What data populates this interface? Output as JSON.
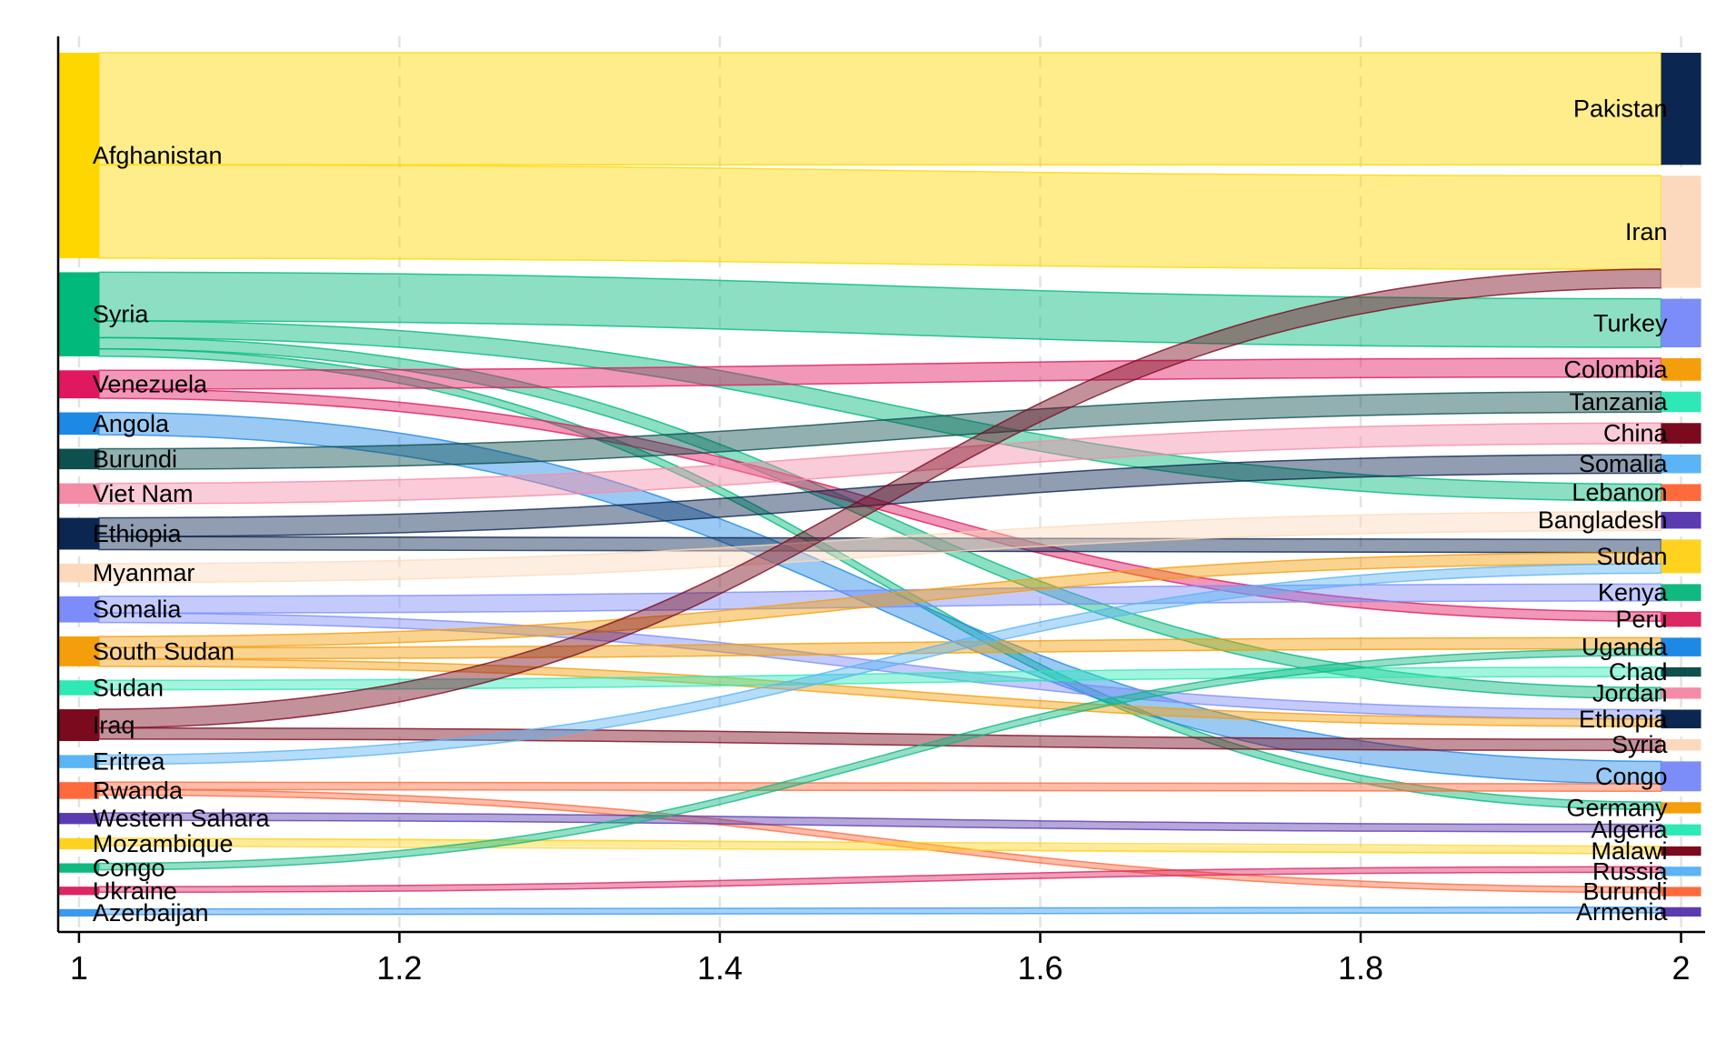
{
  "chart_data": {
    "type": "sankey",
    "title": "",
    "xlabel": "",
    "ylabel": "",
    "xlim": [
      0.987,
      2.015
    ],
    "xticks": [
      "1",
      "1.2",
      "1.4",
      "1.6",
      "1.8",
      "2"
    ],
    "grid": "vertical dashed",
    "legend": "none",
    "sources": [
      {
        "name": "Afghanistan",
        "value": 11.0,
        "color": "#FFD700"
      },
      {
        "name": "Syria",
        "value": 4.5,
        "color": "#00B97A"
      },
      {
        "name": "Venezuela",
        "value": 1.5,
        "color": "#E0185F"
      },
      {
        "name": "Angola",
        "value": 1.2,
        "color": "#1E88E5"
      },
      {
        "name": "Burundi",
        "value": 1.1,
        "color": "#0E4F4F"
      },
      {
        "name": "Viet Nam",
        "value": 1.1,
        "color": "#F48CA8"
      },
      {
        "name": "Ethiopia",
        "value": 1.7,
        "color": "#0B2650"
      },
      {
        "name": "Myanmar",
        "value": 1.0,
        "color": "#FCD9BD"
      },
      {
        "name": "Somalia",
        "value": 1.4,
        "color": "#7C8CF8"
      },
      {
        "name": "South Sudan",
        "value": 1.6,
        "color": "#F59E0B"
      },
      {
        "name": "Sudan",
        "value": 0.8,
        "color": "#2EE8B6"
      },
      {
        "name": "Iraq",
        "value": 1.7,
        "color": "#7B0A1E"
      },
      {
        "name": "Eritrea",
        "value": 0.7,
        "color": "#5AB4F5"
      },
      {
        "name": "Rwanda",
        "value": 0.9,
        "color": "#FF6A3D"
      },
      {
        "name": "Western Sahara",
        "value": 0.6,
        "color": "#5B3CB0"
      },
      {
        "name": "Mozambique",
        "value": 0.6,
        "color": "#FFD21F"
      },
      {
        "name": "Congo",
        "value": 0.5,
        "color": "#10B981"
      },
      {
        "name": "Ukraine",
        "value": 0.45,
        "color": "#DB2763"
      },
      {
        "name": "Azerbaijan",
        "value": 0.4,
        "color": "#3B9AF0"
      }
    ],
    "targets": [
      {
        "name": "Pakistan",
        "value": 6.0,
        "color": "#0B2650"
      },
      {
        "name": "Iran",
        "value": 6.0,
        "color": "#FCD9BD"
      },
      {
        "name": "Turkey",
        "value": 2.6,
        "color": "#7C8CF8"
      },
      {
        "name": "Colombia",
        "value": 1.2,
        "color": "#F59E0B"
      },
      {
        "name": "Tanzania",
        "value": 1.1,
        "color": "#2EE8B6"
      },
      {
        "name": "China",
        "value": 1.1,
        "color": "#7B0A1E"
      },
      {
        "name": "Somalia",
        "value": 1.0,
        "color": "#5AB4F5"
      },
      {
        "name": "Lebanon",
        "value": 0.9,
        "color": "#FF6A3D"
      },
      {
        "name": "Bangladesh",
        "value": 0.9,
        "color": "#5B3CB0"
      },
      {
        "name": "Sudan",
        "value": 1.8,
        "color": "#FFD21F"
      },
      {
        "name": "Kenya",
        "value": 0.9,
        "color": "#10B981"
      },
      {
        "name": "Peru",
        "value": 0.8,
        "color": "#DB2763"
      },
      {
        "name": "Uganda",
        "value": 1.0,
        "color": "#1E88E5"
      },
      {
        "name": "Chad",
        "value": 0.5,
        "color": "#0E4F4F"
      },
      {
        "name": "Jordan",
        "value": 0.6,
        "color": "#F48CA8"
      },
      {
        "name": "Ethiopia",
        "value": 1.0,
        "color": "#0B2650"
      },
      {
        "name": "Syria",
        "value": 0.6,
        "color": "#FCD9BD"
      },
      {
        "name": "Congo",
        "value": 1.6,
        "color": "#7C8CF8"
      },
      {
        "name": "Germany",
        "value": 0.6,
        "color": "#F59E0B"
      },
      {
        "name": "Algeria",
        "value": 0.6,
        "color": "#2EE8B6"
      },
      {
        "name": "Malawi",
        "value": 0.5,
        "color": "#7B0A1E"
      },
      {
        "name": "Russia",
        "value": 0.5,
        "color": "#5AB4F5"
      },
      {
        "name": "Burundi",
        "value": 0.5,
        "color": "#FF6A3D"
      },
      {
        "name": "Armenia",
        "value": 0.5,
        "color": "#5B3CB0"
      }
    ],
    "flows": [
      {
        "source": "Afghanistan",
        "target": "Pakistan",
        "value": 6.0
      },
      {
        "source": "Afghanistan",
        "target": "Iran",
        "value": 5.0
      },
      {
        "source": "Syria",
        "target": "Turkey",
        "value": 2.6
      },
      {
        "source": "Syria",
        "target": "Lebanon",
        "value": 0.9
      },
      {
        "source": "Syria",
        "target": "Jordan",
        "value": 0.6
      },
      {
        "source": "Syria",
        "target": "Germany",
        "value": 0.4
      },
      {
        "source": "Venezuela",
        "target": "Colombia",
        "value": 1.0
      },
      {
        "source": "Venezuela",
        "target": "Peru",
        "value": 0.5
      },
      {
        "source": "Angola",
        "target": "Congo",
        "value": 1.2
      },
      {
        "source": "Burundi",
        "target": "Tanzania",
        "value": 1.1
      },
      {
        "source": "Viet Nam",
        "target": "China",
        "value": 1.1
      },
      {
        "source": "Ethiopia",
        "target": "Somalia",
        "value": 1.0
      },
      {
        "source": "Ethiopia",
        "target": "Sudan",
        "value": 0.7
      },
      {
        "source": "Myanmar",
        "target": "Bangladesh",
        "value": 1.0
      },
      {
        "source": "Somalia",
        "target": "Kenya",
        "value": 0.9
      },
      {
        "source": "Somalia",
        "target": "Ethiopia",
        "value": 0.5
      },
      {
        "source": "South Sudan",
        "target": "Sudan",
        "value": 0.6
      },
      {
        "source": "South Sudan",
        "target": "Uganda",
        "value": 0.6
      },
      {
        "source": "South Sudan",
        "target": "Ethiopia",
        "value": 0.4
      },
      {
        "source": "Sudan",
        "target": "Chad",
        "value": 0.5
      },
      {
        "source": "Iraq",
        "target": "Iran",
        "value": 1.0
      },
      {
        "source": "Iraq",
        "target": "Syria",
        "value": 0.6
      },
      {
        "source": "Eritrea",
        "target": "Sudan",
        "value": 0.5
      },
      {
        "source": "Rwanda",
        "target": "Congo",
        "value": 0.4
      },
      {
        "source": "Rwanda",
        "target": "Burundi",
        "value": 0.3
      },
      {
        "source": "Western Sahara",
        "target": "Algeria",
        "value": 0.4
      },
      {
        "source": "Mozambique",
        "target": "Malawi",
        "value": 0.4
      },
      {
        "source": "Congo",
        "target": "Uganda",
        "value": 0.35
      },
      {
        "source": "Ukraine",
        "target": "Russia",
        "value": 0.3
      },
      {
        "source": "Azerbaijan",
        "target": "Armenia",
        "value": 0.3
      }
    ]
  }
}
